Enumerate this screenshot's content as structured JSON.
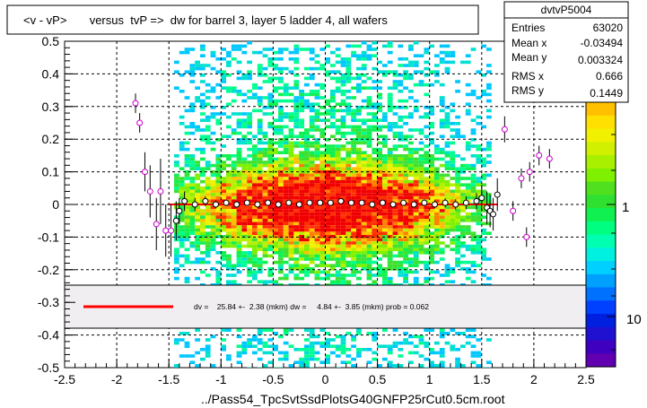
{
  "title": "<v - vP>       versus  tvP =>  dw for barrel 3, layer 5 ladder 4, all wafers",
  "footer": "../Pass54_TpcSvtSsdPlotsG40GNFP25rCut0.5cm.root",
  "stats": {
    "name": "dvtvP5004",
    "rows": [
      {
        "label": "Entries",
        "value": "63020"
      },
      {
        "label": "Mean x",
        "value": "-0.03494"
      },
      {
        "label": "Mean y",
        "value": "0.003324"
      },
      {
        "label": "RMS x",
        "value": "0.666"
      },
      {
        "label": "RMS y",
        "value": "0.1449"
      }
    ]
  },
  "fit_text": "dv =    25.84 +-  2.38 (mkm) dw =     4.84 +-  3.85 (mkm) prob = 0.062",
  "palette_labels": [
    "1",
    "10"
  ],
  "colors": {
    "fit_line": "#ff0000",
    "profile_marker": "#000000",
    "outlier_marker": "#cc00cc",
    "legend_bg": "#f0eef0"
  },
  "chart_data": {
    "type": "heatmap",
    "x_ticks": [
      "-2.5",
      "-2",
      "-1.5",
      "-1",
      "-0.5",
      "0",
      "0.5",
      "1",
      "1.5",
      "2",
      "2.5"
    ],
    "y_ticks": [
      "-0.5",
      "-0.4",
      "-0.3",
      "-0.2",
      "-0.1",
      "0",
      "0.1",
      "0.2",
      "0.3",
      "0.4",
      "0.5"
    ],
    "xlim": [
      -2.5,
      2.5
    ],
    "ylim": [
      -0.5,
      0.5
    ],
    "grid": true,
    "density_x_range": [
      -1.45,
      1.55
    ],
    "fit_line": {
      "x": [
        -1.5,
        1.65
      ],
      "y": [
        0.0,
        0.0
      ]
    },
    "profile_points": [
      {
        "x": -1.43,
        "y": -0.05,
        "err": 0.06
      },
      {
        "x": -1.4,
        "y": -0.02,
        "err": 0.04
      },
      {
        "x": -1.35,
        "y": 0.01,
        "err": 0.03
      },
      {
        "x": -1.25,
        "y": 0.0,
        "err": 0.02
      },
      {
        "x": -1.15,
        "y": 0.01,
        "err": 0.015
      },
      {
        "x": -1.05,
        "y": 0.0,
        "err": 0.012
      },
      {
        "x": -0.95,
        "y": 0.005,
        "err": 0.01
      },
      {
        "x": -0.85,
        "y": 0.0,
        "err": 0.01
      },
      {
        "x": -0.75,
        "y": 0.005,
        "err": 0.008
      },
      {
        "x": -0.65,
        "y": 0.0,
        "err": 0.008
      },
      {
        "x": -0.55,
        "y": 0.005,
        "err": 0.006
      },
      {
        "x": -0.45,
        "y": 0.0,
        "err": 0.006
      },
      {
        "x": -0.35,
        "y": 0.005,
        "err": 0.005
      },
      {
        "x": -0.25,
        "y": 0.0,
        "err": 0.005
      },
      {
        "x": -0.15,
        "y": 0.005,
        "err": 0.005
      },
      {
        "x": -0.05,
        "y": 0.005,
        "err": 0.005
      },
      {
        "x": 0.05,
        "y": 0.005,
        "err": 0.005
      },
      {
        "x": 0.15,
        "y": 0.01,
        "err": 0.005
      },
      {
        "x": 0.25,
        "y": 0.005,
        "err": 0.005
      },
      {
        "x": 0.35,
        "y": 0.005,
        "err": 0.006
      },
      {
        "x": 0.45,
        "y": 0.0,
        "err": 0.006
      },
      {
        "x": 0.55,
        "y": 0.005,
        "err": 0.007
      },
      {
        "x": 0.65,
        "y": 0.0,
        "err": 0.008
      },
      {
        "x": 0.75,
        "y": 0.005,
        "err": 0.008
      },
      {
        "x": 0.85,
        "y": 0.0,
        "err": 0.01
      },
      {
        "x": 0.95,
        "y": 0.005,
        "err": 0.01
      },
      {
        "x": 1.05,
        "y": 0.0,
        "err": 0.012
      },
      {
        "x": 1.15,
        "y": 0.005,
        "err": 0.014
      },
      {
        "x": 1.25,
        "y": 0.0,
        "err": 0.016
      },
      {
        "x": 1.35,
        "y": 0.005,
        "err": 0.02
      },
      {
        "x": 1.45,
        "y": 0.01,
        "err": 0.025
      },
      {
        "x": 1.5,
        "y": 0.02,
        "err": 0.04
      },
      {
        "x": 1.55,
        "y": -0.01,
        "err": 0.05
      },
      {
        "x": 1.58,
        "y": -0.02,
        "err": 0.05
      },
      {
        "x": 1.61,
        "y": -0.03,
        "err": 0.05
      },
      {
        "x": 1.65,
        "y": 0.03,
        "err": 0.05
      }
    ],
    "outlier_points": [
      {
        "x": -1.82,
        "y": 0.31,
        "err": 0.03
      },
      {
        "x": -1.78,
        "y": 0.25,
        "err": 0.03
      },
      {
        "x": -1.73,
        "y": 0.1,
        "err": 0.06
      },
      {
        "x": -1.68,
        "y": 0.04,
        "err": 0.08
      },
      {
        "x": -1.62,
        "y": -0.06,
        "err": 0.08
      },
      {
        "x": -1.58,
        "y": 0.04,
        "err": 0.1
      },
      {
        "x": -1.53,
        "y": -0.08,
        "err": 0.08
      },
      {
        "x": -1.48,
        "y": -0.08,
        "err": 0.08
      },
      {
        "x": 1.72,
        "y": 0.23,
        "err": 0.04
      },
      {
        "x": 1.8,
        "y": -0.02,
        "err": 0.03
      },
      {
        "x": 1.88,
        "y": 0.08,
        "err": 0.03
      },
      {
        "x": 1.93,
        "y": -0.1,
        "err": 0.03
      },
      {
        "x": 1.96,
        "y": 0.1,
        "err": 0.03
      },
      {
        "x": 2.05,
        "y": 0.15,
        "err": 0.03
      },
      {
        "x": 2.15,
        "y": 0.14,
        "err": 0.03
      }
    ]
  }
}
